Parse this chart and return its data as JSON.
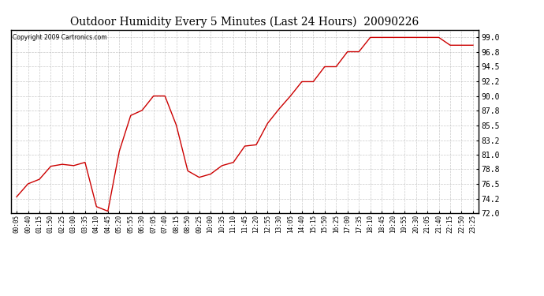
{
  "title": "Outdoor Humidity Every 5 Minutes (Last 24 Hours)  20090226",
  "copyright_text": "Copyright 2009 Cartronics.com",
  "line_color": "#cc0000",
  "background_color": "#ffffff",
  "grid_color": "#bbbbbb",
  "ylim": [
    72.0,
    100.2
  ],
  "yticks": [
    72.0,
    74.2,
    76.5,
    78.8,
    81.0,
    83.2,
    85.5,
    87.8,
    90.0,
    92.2,
    94.5,
    96.8,
    99.0
  ],
  "x_labels": [
    "00:05",
    "00:40",
    "01:15",
    "01:50",
    "02:25",
    "03:00",
    "03:35",
    "04:10",
    "04:45",
    "05:20",
    "05:55",
    "06:30",
    "07:05",
    "07:40",
    "08:15",
    "08:50",
    "09:25",
    "10:00",
    "10:35",
    "11:10",
    "11:45",
    "12:20",
    "12:55",
    "13:30",
    "14:05",
    "14:40",
    "15:15",
    "15:50",
    "16:25",
    "17:00",
    "17:35",
    "18:10",
    "18:45",
    "19:20",
    "19:55",
    "20:30",
    "21:05",
    "21:40",
    "22:15",
    "22:50",
    "23:25"
  ],
  "humidity_values": [
    74.5,
    76.5,
    77.2,
    79.2,
    79.5,
    79.3,
    79.8,
    73.0,
    72.3,
    81.5,
    87.0,
    87.8,
    90.0,
    90.0,
    85.5,
    78.5,
    77.5,
    78.0,
    79.3,
    79.8,
    82.3,
    82.5,
    85.8,
    88.0,
    90.0,
    92.2,
    92.2,
    94.5,
    94.5,
    96.8,
    96.8,
    99.0,
    99.0,
    99.0,
    99.0,
    99.0,
    99.0,
    99.0,
    97.8,
    97.8,
    97.8
  ]
}
